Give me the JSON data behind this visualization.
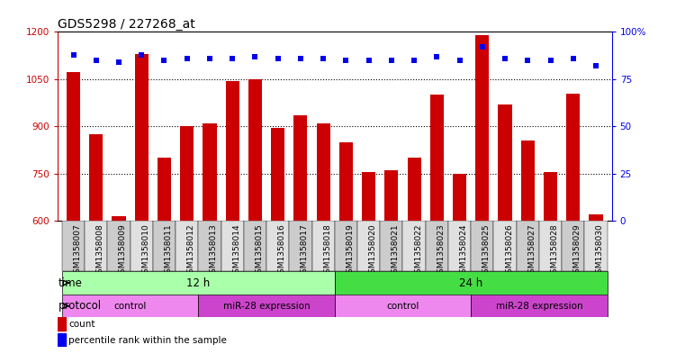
{
  "title": "GDS5298 / 227268_at",
  "samples": [
    "GSM1358007",
    "GSM1358008",
    "GSM1358009",
    "GSM1358010",
    "GSM1358011",
    "GSM1358012",
    "GSM1358013",
    "GSM1358014",
    "GSM1358015",
    "GSM1358016",
    "GSM1358017",
    "GSM1358018",
    "GSM1358019",
    "GSM1358020",
    "GSM1358021",
    "GSM1358022",
    "GSM1358023",
    "GSM1358024",
    "GSM1358025",
    "GSM1358026",
    "GSM1358027",
    "GSM1358028",
    "GSM1358029",
    "GSM1358030"
  ],
  "counts": [
    1073,
    875,
    615,
    1130,
    800,
    900,
    910,
    1045,
    1050,
    895,
    935,
    910,
    850,
    755,
    760,
    800,
    1000,
    750,
    1190,
    970,
    855,
    755,
    1005,
    620
  ],
  "percentile": [
    88,
    85,
    84,
    88,
    85,
    86,
    86,
    86,
    87,
    86,
    86,
    86,
    85,
    85,
    85,
    85,
    87,
    85,
    92,
    86,
    85,
    85,
    86,
    82
  ],
  "ylim_left": [
    600,
    1200
  ],
  "ylim_right": [
    0,
    100
  ],
  "yticks_left": [
    600,
    750,
    900,
    1050,
    1200
  ],
  "yticks_right": [
    0,
    25,
    50,
    75,
    100
  ],
  "bar_color": "#cc0000",
  "dot_color": "#0000ee",
  "bar_width": 0.6,
  "time_groups": [
    {
      "label": "12 h",
      "start": 0,
      "end": 12,
      "color": "#aaffaa"
    },
    {
      "label": "24 h",
      "start": 12,
      "end": 24,
      "color": "#44dd44"
    }
  ],
  "protocol_groups": [
    {
      "label": "control",
      "start": 0,
      "end": 6,
      "color": "#ee88ee"
    },
    {
      "label": "miR-28 expression",
      "start": 6,
      "end": 12,
      "color": "#cc44cc"
    },
    {
      "label": "control",
      "start": 12,
      "end": 18,
      "color": "#ee88ee"
    },
    {
      "label": "miR-28 expression",
      "start": 18,
      "end": 24,
      "color": "#cc44cc"
    }
  ],
  "legend_count_label": "count",
  "legend_pct_label": "percentile rank within the sample",
  "xlabel_time": "time",
  "xlabel_protocol": "protocol",
  "gridline_color": "#000000",
  "background_color": "#ffffff",
  "title_fontsize": 10,
  "tick_fontsize": 7.5,
  "label_fontsize": 8.5,
  "sample_label_fontsize": 6.5,
  "odd_col": "#cccccc",
  "even_col": "#e0e0e0"
}
